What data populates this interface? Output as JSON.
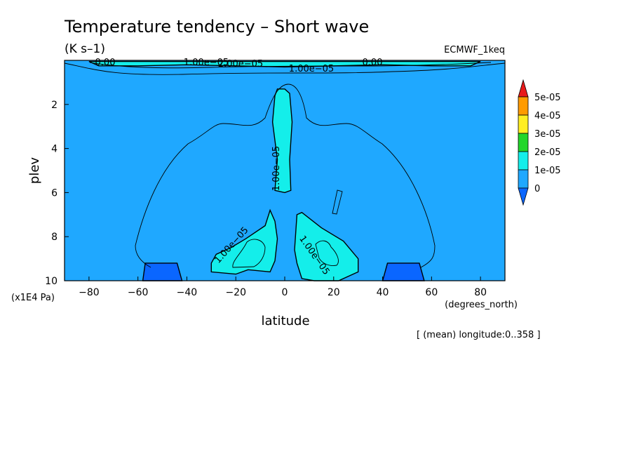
{
  "chart_data": {
    "type": "heatmap",
    "title": "Temperature tendency – Short wave",
    "units": "(K s–1)",
    "dataset": "ECMWF_1keq",
    "xlabel": "latitude",
    "xunits": "(degrees_north)",
    "ylabel": "plev",
    "yunits": "(x1E4 Pa)",
    "footer": "[ (mean) longitude:0..358 ]",
    "xlim": [
      -90,
      90
    ],
    "ylim": [
      10,
      0
    ],
    "x_ticks": [
      -80,
      -60,
      -40,
      -20,
      0,
      20,
      40,
      60,
      80
    ],
    "x_tick_labels": [
      "−80",
      "−60",
      "−40",
      "−20",
      "0",
      "20",
      "40",
      "60",
      "80"
    ],
    "y_ticks": [
      2,
      4,
      6,
      8,
      10
    ],
    "y_tick_labels": [
      "2",
      "4",
      "6",
      "8",
      "10"
    ],
    "colorbar": {
      "levels": [
        0,
        1e-05,
        2e-05,
        3e-05,
        4e-05,
        5e-05
      ],
      "labels": [
        "0",
        "1e-05",
        "2e-05",
        "3e-05",
        "4e-05",
        "5e-05"
      ],
      "colors": [
        "#0a66ff",
        "#1fa8ff",
        "#14eeea",
        "#22d62a",
        "#ffee22",
        "#ff9b00",
        "#e81a1a"
      ]
    },
    "contour_labels": [
      "1.00e−05",
      "1.00e−05",
      "1.00e−05",
      "1.00e−05",
      "1.00e−05",
      "2.00e−05",
      "0.00",
      "0.00"
    ],
    "regions": [
      {
        "name": "below-zero-left",
        "points": [
          [
            -58,
            10
          ],
          [
            -57,
            9.2
          ],
          [
            -44,
            9.2
          ],
          [
            -42,
            10
          ]
        ]
      },
      {
        "name": "below-zero-right",
        "points": [
          [
            40,
            10
          ],
          [
            42,
            9.2
          ],
          [
            55,
            9.2
          ],
          [
            57,
            10
          ]
        ]
      },
      {
        "name": "band-1e5-center-column",
        "points": [
          [
            -4,
            5.9
          ],
          [
            -3,
            4.5
          ],
          [
            -5,
            2.8
          ],
          [
            -4,
            1.6
          ],
          [
            -3,
            1.3
          ],
          [
            0,
            1.3
          ],
          [
            2,
            1.5
          ],
          [
            3,
            2.8
          ],
          [
            2,
            4.5
          ],
          [
            2.5,
            5.9
          ],
          [
            0,
            6.0
          ]
        ]
      },
      {
        "name": "band-1e5-left-lobe",
        "points": [
          [
            -30,
            9.6
          ],
          [
            -30,
            9.2
          ],
          [
            -28,
            8.8
          ],
          [
            -22,
            8.5
          ],
          [
            -16,
            8.1
          ],
          [
            -8,
            7.5
          ],
          [
            -6,
            6.8
          ],
          [
            -4,
            7.3
          ],
          [
            -3,
            8.1
          ],
          [
            -4,
            9.1
          ],
          [
            -6,
            9.6
          ],
          [
            -15,
            9.5
          ],
          [
            -20,
            9.7
          ]
        ]
      },
      {
        "name": "band-1e5-right-lobe",
        "points": [
          [
            4,
            8.6
          ],
          [
            5,
            7.0
          ],
          [
            7,
            6.9
          ],
          [
            15,
            7.6
          ],
          [
            24,
            8.2
          ],
          [
            30,
            9.0
          ],
          [
            30,
            9.6
          ],
          [
            22,
            10.0
          ],
          [
            12,
            10.0
          ],
          [
            7,
            9.9
          ],
          [
            5,
            9.2
          ]
        ]
      },
      {
        "name": "band-1e5-top",
        "points": [
          [
            -80,
            0.05
          ],
          [
            -76,
            0.25
          ],
          [
            -60,
            0.25
          ],
          [
            -40,
            0.2
          ],
          [
            0,
            0.3
          ],
          [
            40,
            0.2
          ],
          [
            60,
            0.25
          ],
          [
            76,
            0.25
          ],
          [
            80,
            0.05
          ]
        ]
      }
    ]
  }
}
